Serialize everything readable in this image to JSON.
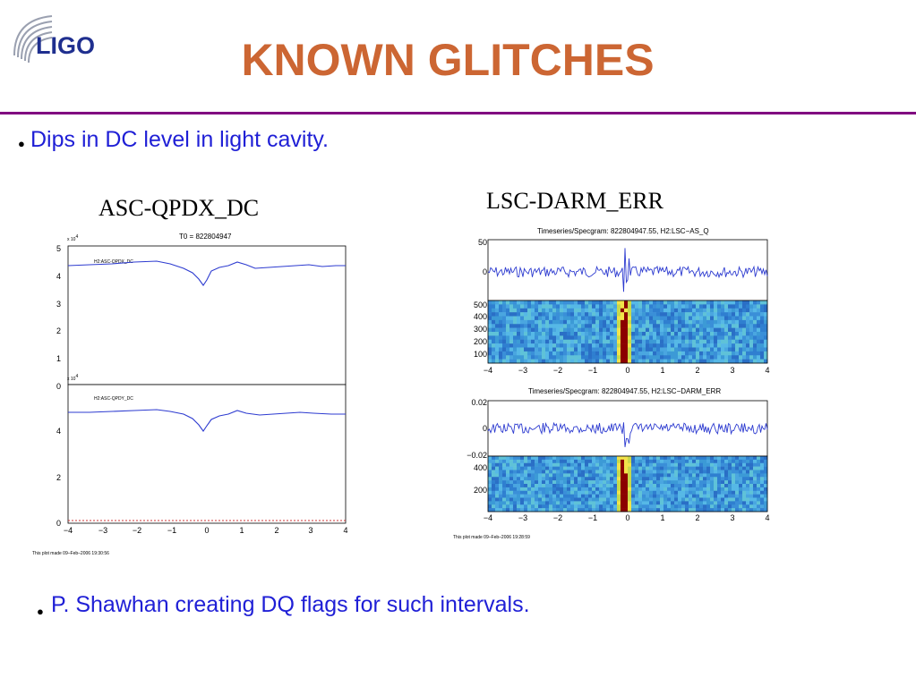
{
  "logo": {
    "text": "LIGO",
    "icon": "ligo-swoosh-icon"
  },
  "title": "KNOWN GLITCHES",
  "bullets": [
    "Dips in DC level in light cavity.",
    "P. Shawhan creating DQ flags for such intervals."
  ],
  "figure_left": {
    "title": "ASC-QPDX_DC",
    "header": "T0 = 822804947",
    "top_panel": {
      "legend": "H2:ASC-QPDX_DC",
      "exponent": "x 10",
      "exp_power": "4",
      "yticks": [
        "5",
        "4",
        "3",
        "2",
        "1",
        "0"
      ]
    },
    "bottom_panel": {
      "legend": "H2:ASC-QPDY_DC",
      "exponent": "x 10",
      "exp_power": "4",
      "yticks": [
        "4",
        "2",
        "0"
      ]
    },
    "xticks": [
      "−4",
      "−3",
      "−2",
      "−1",
      "0",
      "1",
      "2",
      "3",
      "4"
    ],
    "footer": "This plot made 09–Feb–2006 19:30:56"
  },
  "figure_right": {
    "title": "LSC-DARM_ERR",
    "panel1": {
      "header": "Timeseries/Specgram: 822804947.55, H2:LSC−AS_Q",
      "yticks": [
        "50",
        "0"
      ],
      "spec_yticks": [
        "500",
        "400",
        "300",
        "200",
        "100"
      ]
    },
    "panel2": {
      "header": "Timeseries/Specgram: 822804947.55, H2:LSC−DARM_ERR",
      "yticks": [
        "0.02",
        "0",
        "−0.02"
      ],
      "spec_yticks": [
        "400",
        "200"
      ]
    },
    "xticks": [
      "−4",
      "−3",
      "−2",
      "−1",
      "0",
      "1",
      "2",
      "3",
      "4"
    ],
    "footer": "This plot made 09–Feb–2006 19:28:59"
  }
}
